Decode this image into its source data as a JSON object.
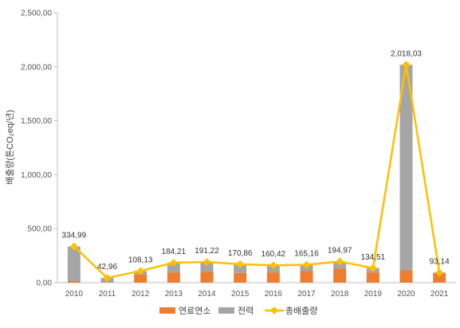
{
  "chart_data": {
    "type": "bar",
    "stacked": true,
    "categories": [
      "2010",
      "2011",
      "2012",
      "2013",
      "2014",
      "2015",
      "2016",
      "2017",
      "2018",
      "2019",
      "2020",
      "2021"
    ],
    "ylabel": "배출량(톤CO₂eq/년)",
    "ylim": [
      0,
      2500
    ],
    "y_ticks": [
      0,
      500,
      1000,
      1500,
      2000,
      2500
    ],
    "y_tick_labels": [
      "0,00",
      "500,00",
      "1,000,00",
      "1,500,00",
      "2,000,00",
      "2,500,00"
    ],
    "series": [
      {
        "name": "연료연소",
        "kind": "bar",
        "color": "#ED7D31",
        "values": [
          15,
          5,
          75,
          95,
          100,
          90,
          95,
          110,
          130,
          95,
          115,
          85
        ]
      },
      {
        "name": "전력",
        "kind": "bar",
        "color": "#A5A5A5",
        "values": [
          319.99,
          37.96,
          33.13,
          89.21,
          91.22,
          80.86,
          65.42,
          55.16,
          64.97,
          39.51,
          1903.03,
          8.14
        ]
      },
      {
        "name": "총배출량",
        "kind": "line",
        "color": "#FFC000",
        "values": [
          334.99,
          42.96,
          108.13,
          184.21,
          191.22,
          170.86,
          160.42,
          165.16,
          194.97,
          134.51,
          2018.03,
          93.14
        ]
      }
    ],
    "data_labels": [
      "334,99",
      "42,96",
      "108,13",
      "184,21",
      "191,22",
      "170,86",
      "160,42",
      "165,16",
      "194,97",
      "134,51",
      "2,018,03",
      "93,14"
    ],
    "legend_position": "bottom",
    "grid": false
  }
}
